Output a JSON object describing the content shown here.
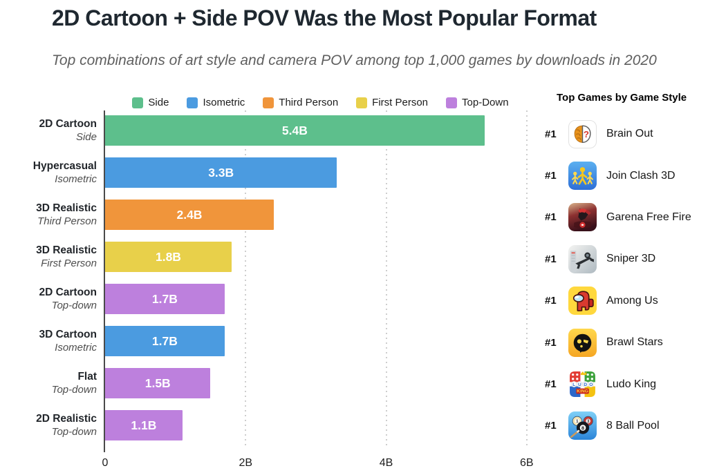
{
  "title": "2D Cartoon + Side POV Was the Most Popular Format",
  "subtitle": "Top combinations of art style and camera POV among top 1,000 games by downloads in 2020",
  "legend": [
    {
      "label": "Side",
      "color": "#5dbf8c"
    },
    {
      "label": "Isometric",
      "color": "#4b9be0"
    },
    {
      "label": "Third Person",
      "color": "#f0953b"
    },
    {
      "label": "First Person",
      "color": "#e8d04a"
    },
    {
      "label": "Top-Down",
      "color": "#bd80dd"
    }
  ],
  "chart_data": {
    "type": "bar",
    "orientation": "horizontal",
    "title": "2D Cartoon + Side POV Was the Most Popular Format",
    "unit": "downloads (billions)",
    "xlim": [
      0,
      6.13
    ],
    "grid": "dotted vertical at ticks",
    "ticks": [
      {
        "label": "0",
        "value": 0
      },
      {
        "label": "2B",
        "value": 2
      },
      {
        "label": "4B",
        "value": 4
      },
      {
        "label": "6B",
        "value": 6
      }
    ],
    "bars": [
      {
        "style": "2D Cartoon",
        "pov": "Side",
        "category": "Side",
        "value": 5.4,
        "label": "5.4B"
      },
      {
        "style": "Hypercasual",
        "pov": "Isometric",
        "category": "Isometric",
        "value": 3.3,
        "label": "3.3B"
      },
      {
        "style": "3D Realistic",
        "pov": "Third Person",
        "category": "Third Person",
        "value": 2.4,
        "label": "2.4B"
      },
      {
        "style": "3D Realistic",
        "pov": "First Person",
        "category": "First Person",
        "value": 1.8,
        "label": "1.8B"
      },
      {
        "style": "2D Cartoon",
        "pov": "Top-down",
        "category": "Top-Down",
        "value": 1.7,
        "label": "1.7B"
      },
      {
        "style": "3D Cartoon",
        "pov": "Isometric",
        "category": "Isometric",
        "value": 1.7,
        "label": "1.7B"
      },
      {
        "style": "Flat",
        "pov": "Top-down",
        "category": "Top-Down",
        "value": 1.5,
        "label": "1.5B"
      },
      {
        "style": "2D Realistic",
        "pov": "Top-down",
        "category": "Top-Down",
        "value": 1.1,
        "label": "1.1B"
      }
    ]
  },
  "sidebar": {
    "title": "Top Games by Game Style",
    "games": [
      {
        "rank": "#1",
        "name": "Brain Out",
        "icon": "brain-out-icon"
      },
      {
        "rank": "#1",
        "name": "Join Clash 3D",
        "icon": "join-clash-3d-icon"
      },
      {
        "rank": "#1",
        "name": "Garena Free Fire",
        "icon": "garena-free-fire-icon"
      },
      {
        "rank": "#1",
        "name": "Sniper 3D",
        "icon": "sniper-3d-icon"
      },
      {
        "rank": "#1",
        "name": "Among Us",
        "icon": "among-us-icon"
      },
      {
        "rank": "#1",
        "name": "Brawl Stars",
        "icon": "brawl-stars-icon"
      },
      {
        "rank": "#1",
        "name": "Ludo King",
        "icon": "ludo-king-icon"
      },
      {
        "rank": "#1",
        "name": "8 Ball Pool",
        "icon": "8-ball-pool-icon"
      }
    ]
  }
}
